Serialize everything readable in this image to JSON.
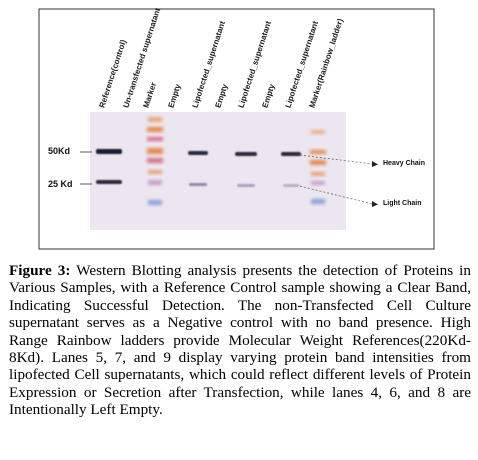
{
  "figure": {
    "lanes": [
      "Reference(control)",
      "Un-transfected supernatant",
      "Marker",
      "Empty",
      "Lipofected_supernatant",
      "Empty",
      "Lipofected_supernatant",
      "Empty",
      "Lipofected_supernatant",
      "Marker(Rainbow_ladder)"
    ],
    "mw_markers": [
      "50Kd",
      "25 Kd"
    ],
    "chain_annotations": [
      "Heavy Chain",
      "Light Chain"
    ],
    "colors": {
      "membrane": "#ebe6ef",
      "band": "#1c1c2e",
      "ladder_orange": "#e58a4f",
      "ladder_pink": "#d9708a",
      "ladder_blue": "#8da0d8"
    }
  },
  "caption": {
    "label": "Figure 3:",
    "text": " Western Blotting analysis presents the detection of Proteins in Various Samples, with a Reference Control sample showing a Clear Band, Indicating Successful Detection. The non-Transfected Cell Culture supernatant serves as a Negative control with no band presence. High Range Rainbow ladders provide Molecular Weight References(220Kd-8Kd). Lanes 5, 7, and 9 display varying protein band intensities from lipofected Cell supernatants, which could reflect different levels of Protein Expression or Secretion after Transfection, while lanes 4, 6, and 8 are Intentionally Left Empty."
  }
}
